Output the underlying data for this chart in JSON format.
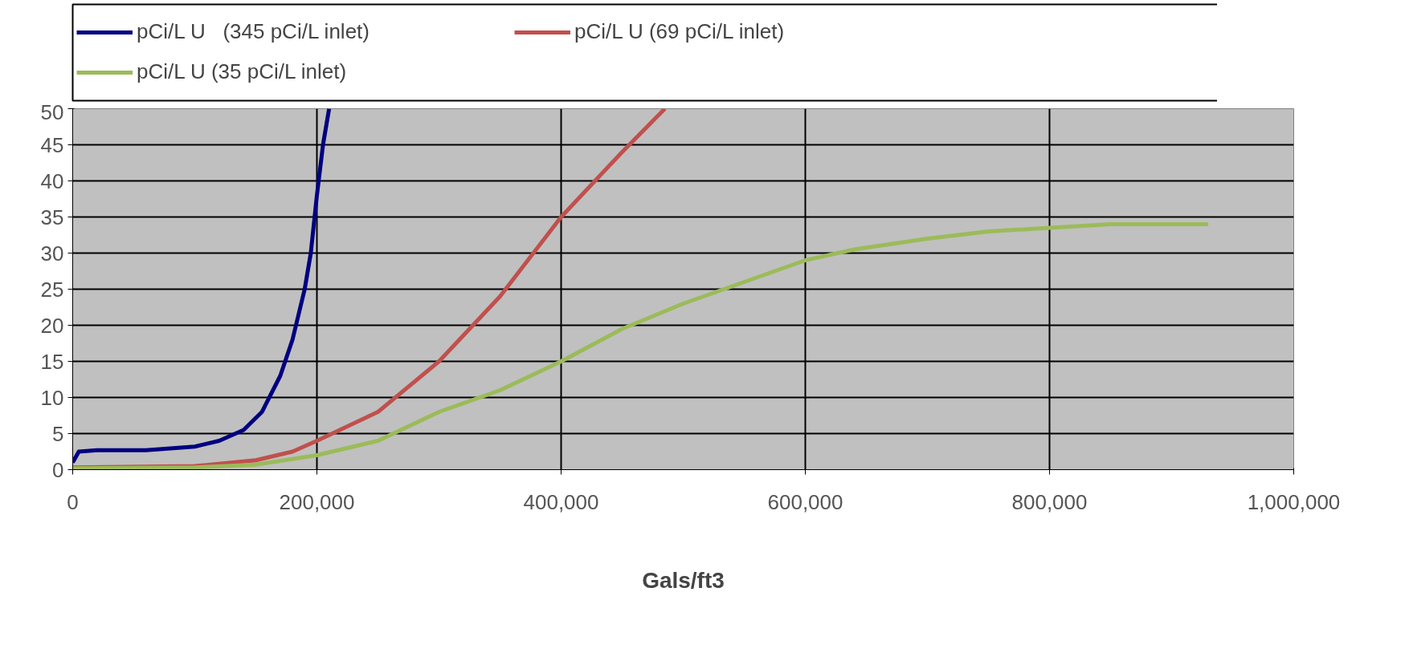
{
  "chart_data": {
    "type": "line",
    "xlabel": "Gals/ft3",
    "xlim": [
      0,
      1000000
    ],
    "ylim": [
      0,
      50
    ],
    "xticks": [
      0,
      {
        "value": 200000,
        "label": "200,000"
      },
      {
        "value": 400000,
        "label": "400,000"
      },
      {
        "value": 600000,
        "label": "600,000"
      },
      {
        "value": 800000,
        "label": "800,000"
      },
      {
        "value": 1000000,
        "label": "1,000,000"
      }
    ],
    "yticks": [
      0,
      5,
      10,
      15,
      20,
      25,
      30,
      35,
      40,
      45,
      50
    ],
    "grid": true,
    "legend": "top",
    "marker": "none",
    "line_style": "solid",
    "series": [
      {
        "name": "pCi/L U   (345 pCi/L inlet)",
        "color": "#000080",
        "x": [
          0,
          5000,
          20000,
          60000,
          100000,
          120000,
          140000,
          155000,
          170000,
          180000,
          190000,
          195000,
          200000,
          205000,
          210000
        ],
        "values": [
          1,
          2.5,
          2.7,
          2.7,
          3.2,
          4,
          5.5,
          8,
          13,
          18,
          25,
          30,
          38,
          45,
          50
        ]
      },
      {
        "name": "pCi/L U (69 pCi/L inlet)",
        "color": "#c0504d",
        "x": [
          0,
          100000,
          150000,
          180000,
          200000,
          250000,
          300000,
          350000,
          400000,
          450000,
          485000
        ],
        "values": [
          0.3,
          0.5,
          1.3,
          2.5,
          4,
          8,
          15,
          24,
          35,
          44,
          50
        ]
      },
      {
        "name": "pCi/L U (35 pCi/L inlet)",
        "color": "#9bbb59",
        "x": [
          0,
          100000,
          150000,
          200000,
          250000,
          300000,
          350000,
          400000,
          450000,
          500000,
          550000,
          600000,
          640000,
          700000,
          750000,
          800000,
          850000,
          900000,
          930000
        ],
        "values": [
          0.2,
          0.3,
          0.7,
          2,
          4,
          8,
          11,
          15,
          19.5,
          23,
          26,
          29,
          30.5,
          32,
          33,
          33.5,
          34,
          34,
          34
        ]
      }
    ]
  }
}
